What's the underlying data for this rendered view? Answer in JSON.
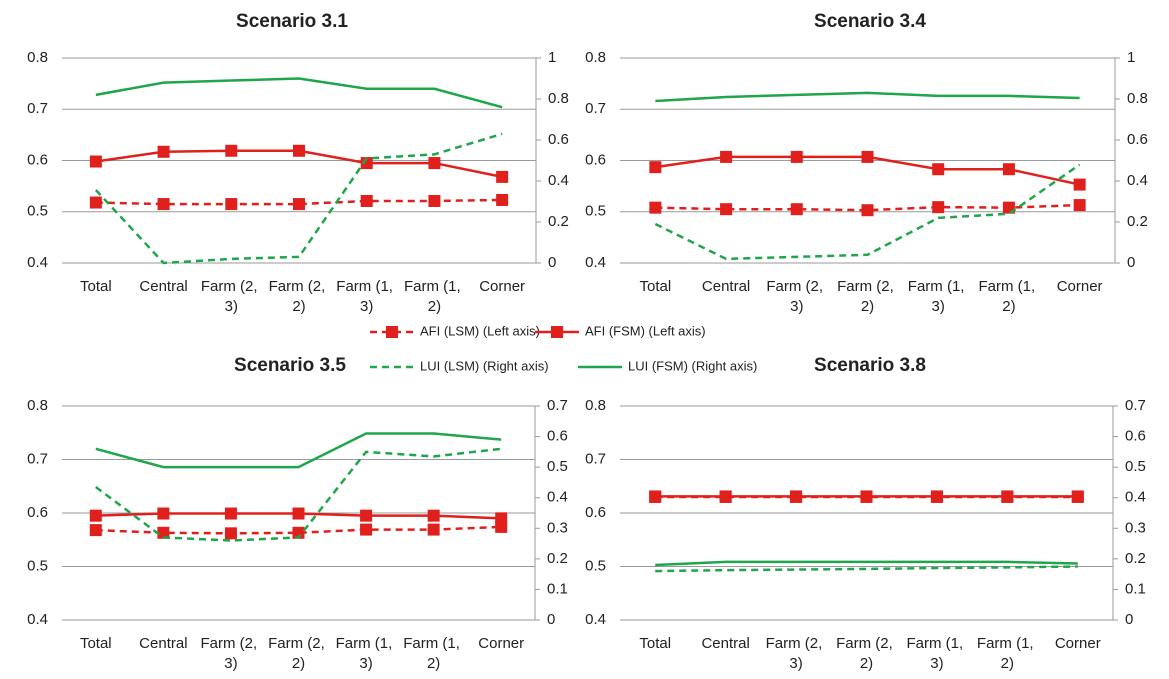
{
  "legend": [
    {
      "name": "AFI (LSM) (Left axis)",
      "color": "#e0201c",
      "dashed": true,
      "marker": true,
      "axis": "y"
    },
    {
      "name": "AFI (FSM) (Left axis)",
      "color": "#e0201c",
      "dashed": false,
      "marker": true,
      "axis": "y"
    },
    {
      "name": "LUI (LSM) (Right axis)",
      "color": "#1fa64a",
      "dashed": true,
      "marker": false,
      "axis": "y2"
    },
    {
      "name": "LUI (FSM) (Right axis)",
      "color": "#1fa64a",
      "dashed": false,
      "marker": false,
      "axis": "y2"
    }
  ],
  "chart_data": [
    {
      "type": "line",
      "title": "Scenario 3.1",
      "categories": [
        "Total",
        "Central",
        "Farm (2, 3)",
        "Farm (2, 2)",
        "Farm (1, 3)",
        "Farm (1, 2)",
        "Corner"
      ],
      "ylim": [
        0.4,
        0.8
      ],
      "yticks": [
        0.4,
        0.5,
        0.6,
        0.7,
        0.8
      ],
      "y2lim": [
        0,
        1
      ],
      "y2ticks": [
        0,
        0.2,
        0.4,
        0.6,
        0.8,
        1
      ],
      "grid": true,
      "series": [
        {
          "values": [
            0.518,
            0.515,
            0.515,
            0.515,
            0.521,
            0.521,
            0.523
          ]
        },
        {
          "values": [
            0.598,
            0.617,
            0.619,
            0.619,
            0.595,
            0.595,
            0.568
          ]
        },
        {
          "values": [
            0.356,
            0.0,
            0.02,
            0.03,
            0.51,
            0.53,
            0.63
          ]
        },
        {
          "values": [
            0.82,
            0.88,
            0.89,
            0.9,
            0.85,
            0.85,
            0.76
          ]
        }
      ]
    },
    {
      "type": "line",
      "title": "Scenario 3.4",
      "categories": [
        "Total",
        "Central",
        "Farm (2, 3)",
        "Farm (2, 2)",
        "Farm (1, 3)",
        "Farm (1, 2)",
        "Corner"
      ],
      "ylim": [
        0.4,
        0.8
      ],
      "yticks": [
        0.4,
        0.5,
        0.6,
        0.7,
        0.8
      ],
      "y2lim": [
        0,
        1
      ],
      "y2ticks": [
        0,
        0.2,
        0.4,
        0.6,
        0.8,
        1
      ],
      "grid": true,
      "series": [
        {
          "values": [
            0.508,
            0.505,
            0.505,
            0.503,
            0.509,
            0.508,
            0.513
          ]
        },
        {
          "values": [
            0.587,
            0.607,
            0.607,
            0.607,
            0.583,
            0.583,
            0.553
          ]
        },
        {
          "values": [
            0.19,
            0.02,
            0.03,
            0.04,
            0.22,
            0.24,
            0.48
          ]
        },
        {
          "values": [
            0.79,
            0.81,
            0.82,
            0.83,
            0.815,
            0.815,
            0.805
          ]
        }
      ]
    },
    {
      "type": "line",
      "title": "Scenario 3.5",
      "categories": [
        "Total",
        "Central",
        "Farm (2, 3)",
        "Farm (2, 2)",
        "Farm (1, 3)",
        "Farm (1, 2)",
        "Corner"
      ],
      "ylim": [
        0.4,
        0.8
      ],
      "yticks": [
        0.4,
        0.5,
        0.6,
        0.7,
        0.8
      ],
      "y2lim": [
        0,
        0.7
      ],
      "y2ticks": [
        0,
        0.1,
        0.2,
        0.3,
        0.4,
        0.5,
        0.6,
        0.7
      ],
      "grid": true,
      "series": [
        {
          "values": [
            0.568,
            0.563,
            0.562,
            0.563,
            0.569,
            0.569,
            0.574
          ]
        },
        {
          "values": [
            0.595,
            0.599,
            0.599,
            0.599,
            0.595,
            0.595,
            0.59
          ]
        },
        {
          "values": [
            0.435,
            0.27,
            0.26,
            0.27,
            0.55,
            0.535,
            0.56
          ]
        },
        {
          "values": [
            0.56,
            0.5,
            0.5,
            0.5,
            0.61,
            0.61,
            0.59
          ]
        }
      ]
    },
    {
      "type": "line",
      "title": "Scenario 3.8",
      "categories": [
        "Total",
        "Central",
        "Farm (2, 3)",
        "Farm (2, 2)",
        "Farm (1, 3)",
        "Farm (1, 2)",
        "Corner"
      ],
      "ylim": [
        0.4,
        0.8
      ],
      "yticks": [
        0.4,
        0.5,
        0.6,
        0.7,
        0.8
      ],
      "y2lim": [
        0,
        0.7
      ],
      "y2ticks": [
        0,
        0.1,
        0.2,
        0.3,
        0.4,
        0.5,
        0.6,
        0.7
      ],
      "grid": true,
      "series": [
        {
          "values": [
            0.63,
            0.63,
            0.63,
            0.63,
            0.63,
            0.63,
            0.63
          ]
        },
        {
          "values": [
            0.631,
            0.631,
            0.631,
            0.631,
            0.631,
            0.631,
            0.631
          ]
        },
        {
          "values": [
            0.16,
            0.163,
            0.165,
            0.167,
            0.17,
            0.172,
            0.175
          ]
        },
        {
          "values": [
            0.18,
            0.19,
            0.19,
            0.19,
            0.19,
            0.19,
            0.185
          ]
        }
      ]
    }
  ]
}
